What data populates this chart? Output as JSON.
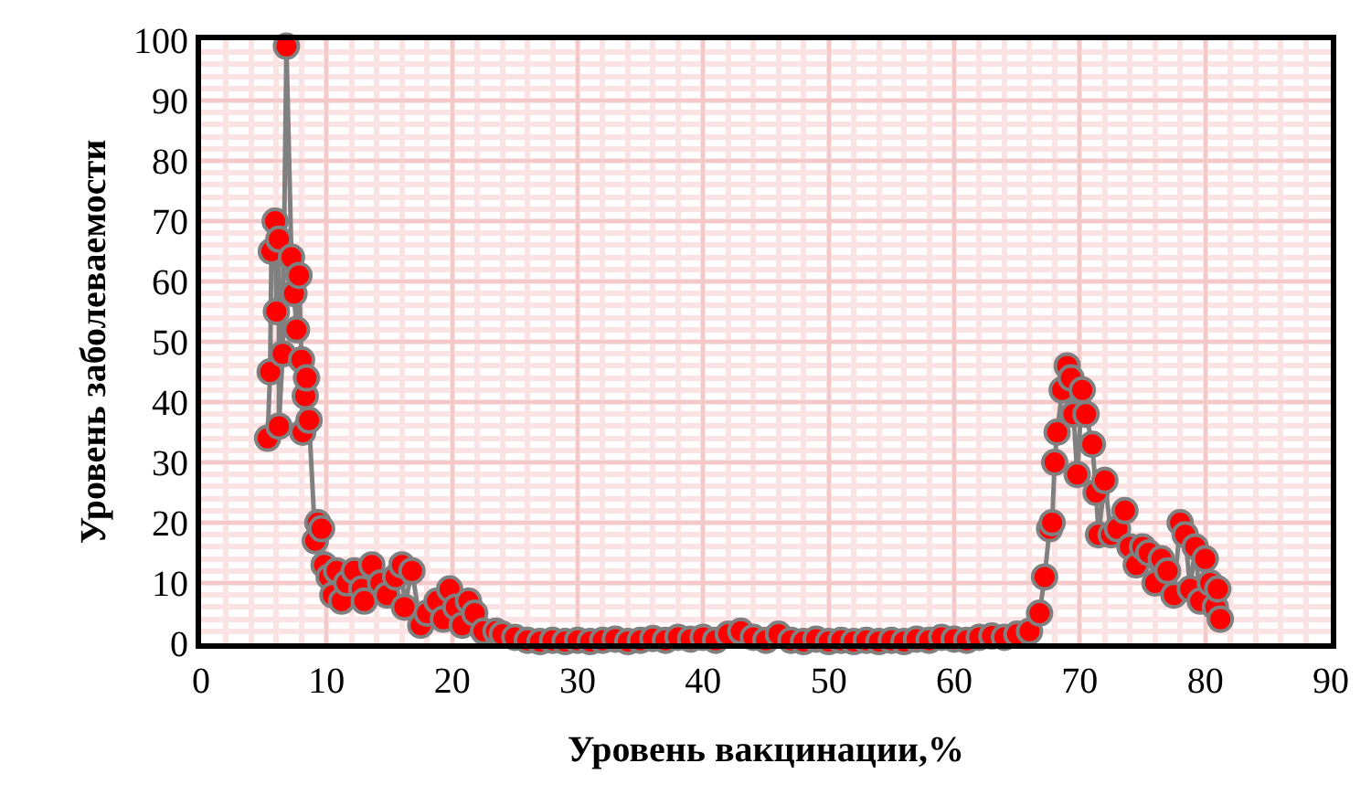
{
  "chart_data": {
    "type": "line",
    "xlabel": "Уровень вакцинации,%",
    "ylabel": "Уровень заболеваемости",
    "xlim": [
      0,
      90
    ],
    "xticks": [
      0,
      10,
      20,
      30,
      40,
      50,
      60,
      70,
      80,
      90
    ],
    "ylim": [
      0,
      100
    ],
    "yticks": [
      0,
      10,
      20,
      30,
      40,
      50,
      60,
      70,
      80,
      90,
      100
    ],
    "grid": true,
    "marker": "circle",
    "line_style": "solid",
    "legend": false,
    "series": [
      {
        "color": "#ff0000",
        "x": [
          5.3,
          5.5,
          5.6,
          5.9,
          6.0,
          6.2,
          6.2,
          6.5,
          6.8,
          7.2,
          7.4,
          7.6,
          7.8,
          8.0,
          8.1,
          8.3,
          8.4,
          8.6,
          9.1,
          9.3,
          9.6,
          9.8,
          10.2,
          10.5,
          10.8,
          11.2,
          11.6,
          12.2,
          12.8,
          13.0,
          13.6,
          14.3,
          14.8,
          15.5,
          16.0,
          16.2,
          16.8,
          17.5,
          18.0,
          18.8,
          19.3,
          19.8,
          20.3,
          20.8,
          21.3,
          21.8,
          22.5,
          23.5,
          24,
          25,
          26,
          27,
          28,
          29,
          30,
          31,
          32,
          33,
          34,
          35,
          36,
          37,
          38,
          39,
          40,
          41,
          42,
          43,
          44,
          45,
          46,
          47,
          48,
          49,
          50,
          51,
          52,
          53,
          54,
          55,
          56,
          57,
          58,
          59,
          60,
          61,
          62,
          63,
          64,
          65,
          66,
          66.8,
          67.2,
          67.6,
          67.8,
          68,
          68.2,
          68.6,
          69,
          69.3,
          69.5,
          69.8,
          70.2,
          70.5,
          71,
          71.3,
          71.5,
          72,
          72.5,
          73,
          73.6,
          74,
          74.5,
          75,
          75.5,
          76,
          76.5,
          77,
          77.5,
          78,
          78.4,
          78.8,
          79.2,
          79.6,
          80,
          80.4,
          80.8,
          81,
          81.2
        ],
        "values": [
          34,
          45,
          65,
          70,
          55,
          67,
          36,
          48,
          99,
          64,
          58,
          52,
          61,
          47,
          35,
          41,
          44,
          37,
          17,
          20,
          19,
          13,
          11,
          8,
          12,
          7,
          10,
          12,
          9,
          7,
          13,
          10,
          8,
          11,
          13,
          6,
          12,
          3,
          5,
          7,
          4,
          9,
          6,
          3,
          7,
          5,
          2,
          2,
          1.5,
          1,
          0.5,
          0.3,
          0.5,
          0.3,
          0.5,
          0.3,
          0.5,
          0.7,
          0.3,
          0.5,
          0.8,
          0.5,
          1,
          0.7,
          1,
          0.5,
          1.5,
          2,
          1,
          0.5,
          1.5,
          0.5,
          0.3,
          0.7,
          0.3,
          0.5,
          0.3,
          0.5,
          0.3,
          0.5,
          0.3,
          0.7,
          0.5,
          1,
          0.7,
          0.5,
          1,
          1.2,
          1,
          1.5,
          2,
          5,
          11,
          19,
          20,
          30,
          35,
          42,
          46,
          44,
          38,
          28,
          42,
          38,
          33,
          25,
          18,
          27,
          18,
          19,
          22,
          16,
          13,
          16,
          15,
          10,
          14,
          12,
          8,
          20,
          18,
          9,
          16,
          7,
          14,
          10,
          6,
          9,
          4
        ]
      }
    ]
  }
}
